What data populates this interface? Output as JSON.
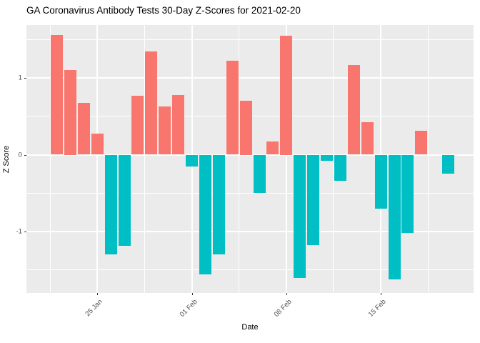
{
  "title": "GA Coronavirus Antibody Tests 30-Day Z-Scores for 2021-02-20",
  "chart_data": {
    "type": "bar",
    "title": "GA Coronavirus Antibody Tests 30-Day Z-Scores for 2021-02-20",
    "xlabel": "Date",
    "ylabel": "Z Score",
    "dates": [
      "2021-01-22",
      "2021-01-23",
      "2021-01-24",
      "2021-01-25",
      "2021-01-26",
      "2021-01-27",
      "2021-01-28",
      "2021-01-29",
      "2021-01-30",
      "2021-01-31",
      "2021-02-01",
      "2021-02-02",
      "2021-02-03",
      "2021-02-04",
      "2021-02-05",
      "2021-02-06",
      "2021-02-07",
      "2021-02-08",
      "2021-02-09",
      "2021-02-10",
      "2021-02-11",
      "2021-02-12",
      "2021-02-13",
      "2021-02-14",
      "2021-02-15",
      "2021-02-16",
      "2021-02-17",
      "2021-02-18",
      "2021-02-19",
      "2021-02-20"
    ],
    "values": [
      1.56,
      1.1,
      0.67,
      0.27,
      -1.3,
      -1.19,
      0.77,
      1.34,
      0.63,
      0.78,
      -0.15,
      -1.56,
      -1.3,
      1.22,
      0.7,
      -0.5,
      0.17,
      1.55,
      -1.6,
      -1.18,
      -0.08,
      -0.34,
      1.17,
      0.42,
      -0.7,
      -1.62,
      -1.02,
      0.31,
      null,
      -0.25
    ],
    "x_tick_labels": [
      "25 Jan",
      "01 Feb",
      "08 Feb",
      "15 Feb"
    ],
    "x_tick_indices": [
      3,
      10,
      17,
      24
    ],
    "y_tick_labels": [
      "1",
      "0",
      "-1"
    ],
    "y_ticks": [
      1,
      0,
      -1
    ],
    "y_minor_ticks": [
      1.5,
      0.5,
      -0.5,
      -1.5
    ],
    "ylim": [
      -1.8,
      1.69
    ],
    "legend": "none",
    "grid": "on",
    "positive_color": "#F8766D",
    "negative_color": "#00BFC4",
    "panel_bg": "#EBEBEB",
    "grid_color": "#FFFFFF",
    "axis_text_color": "#4d4d4d",
    "tick_mark_color": "#333333"
  }
}
